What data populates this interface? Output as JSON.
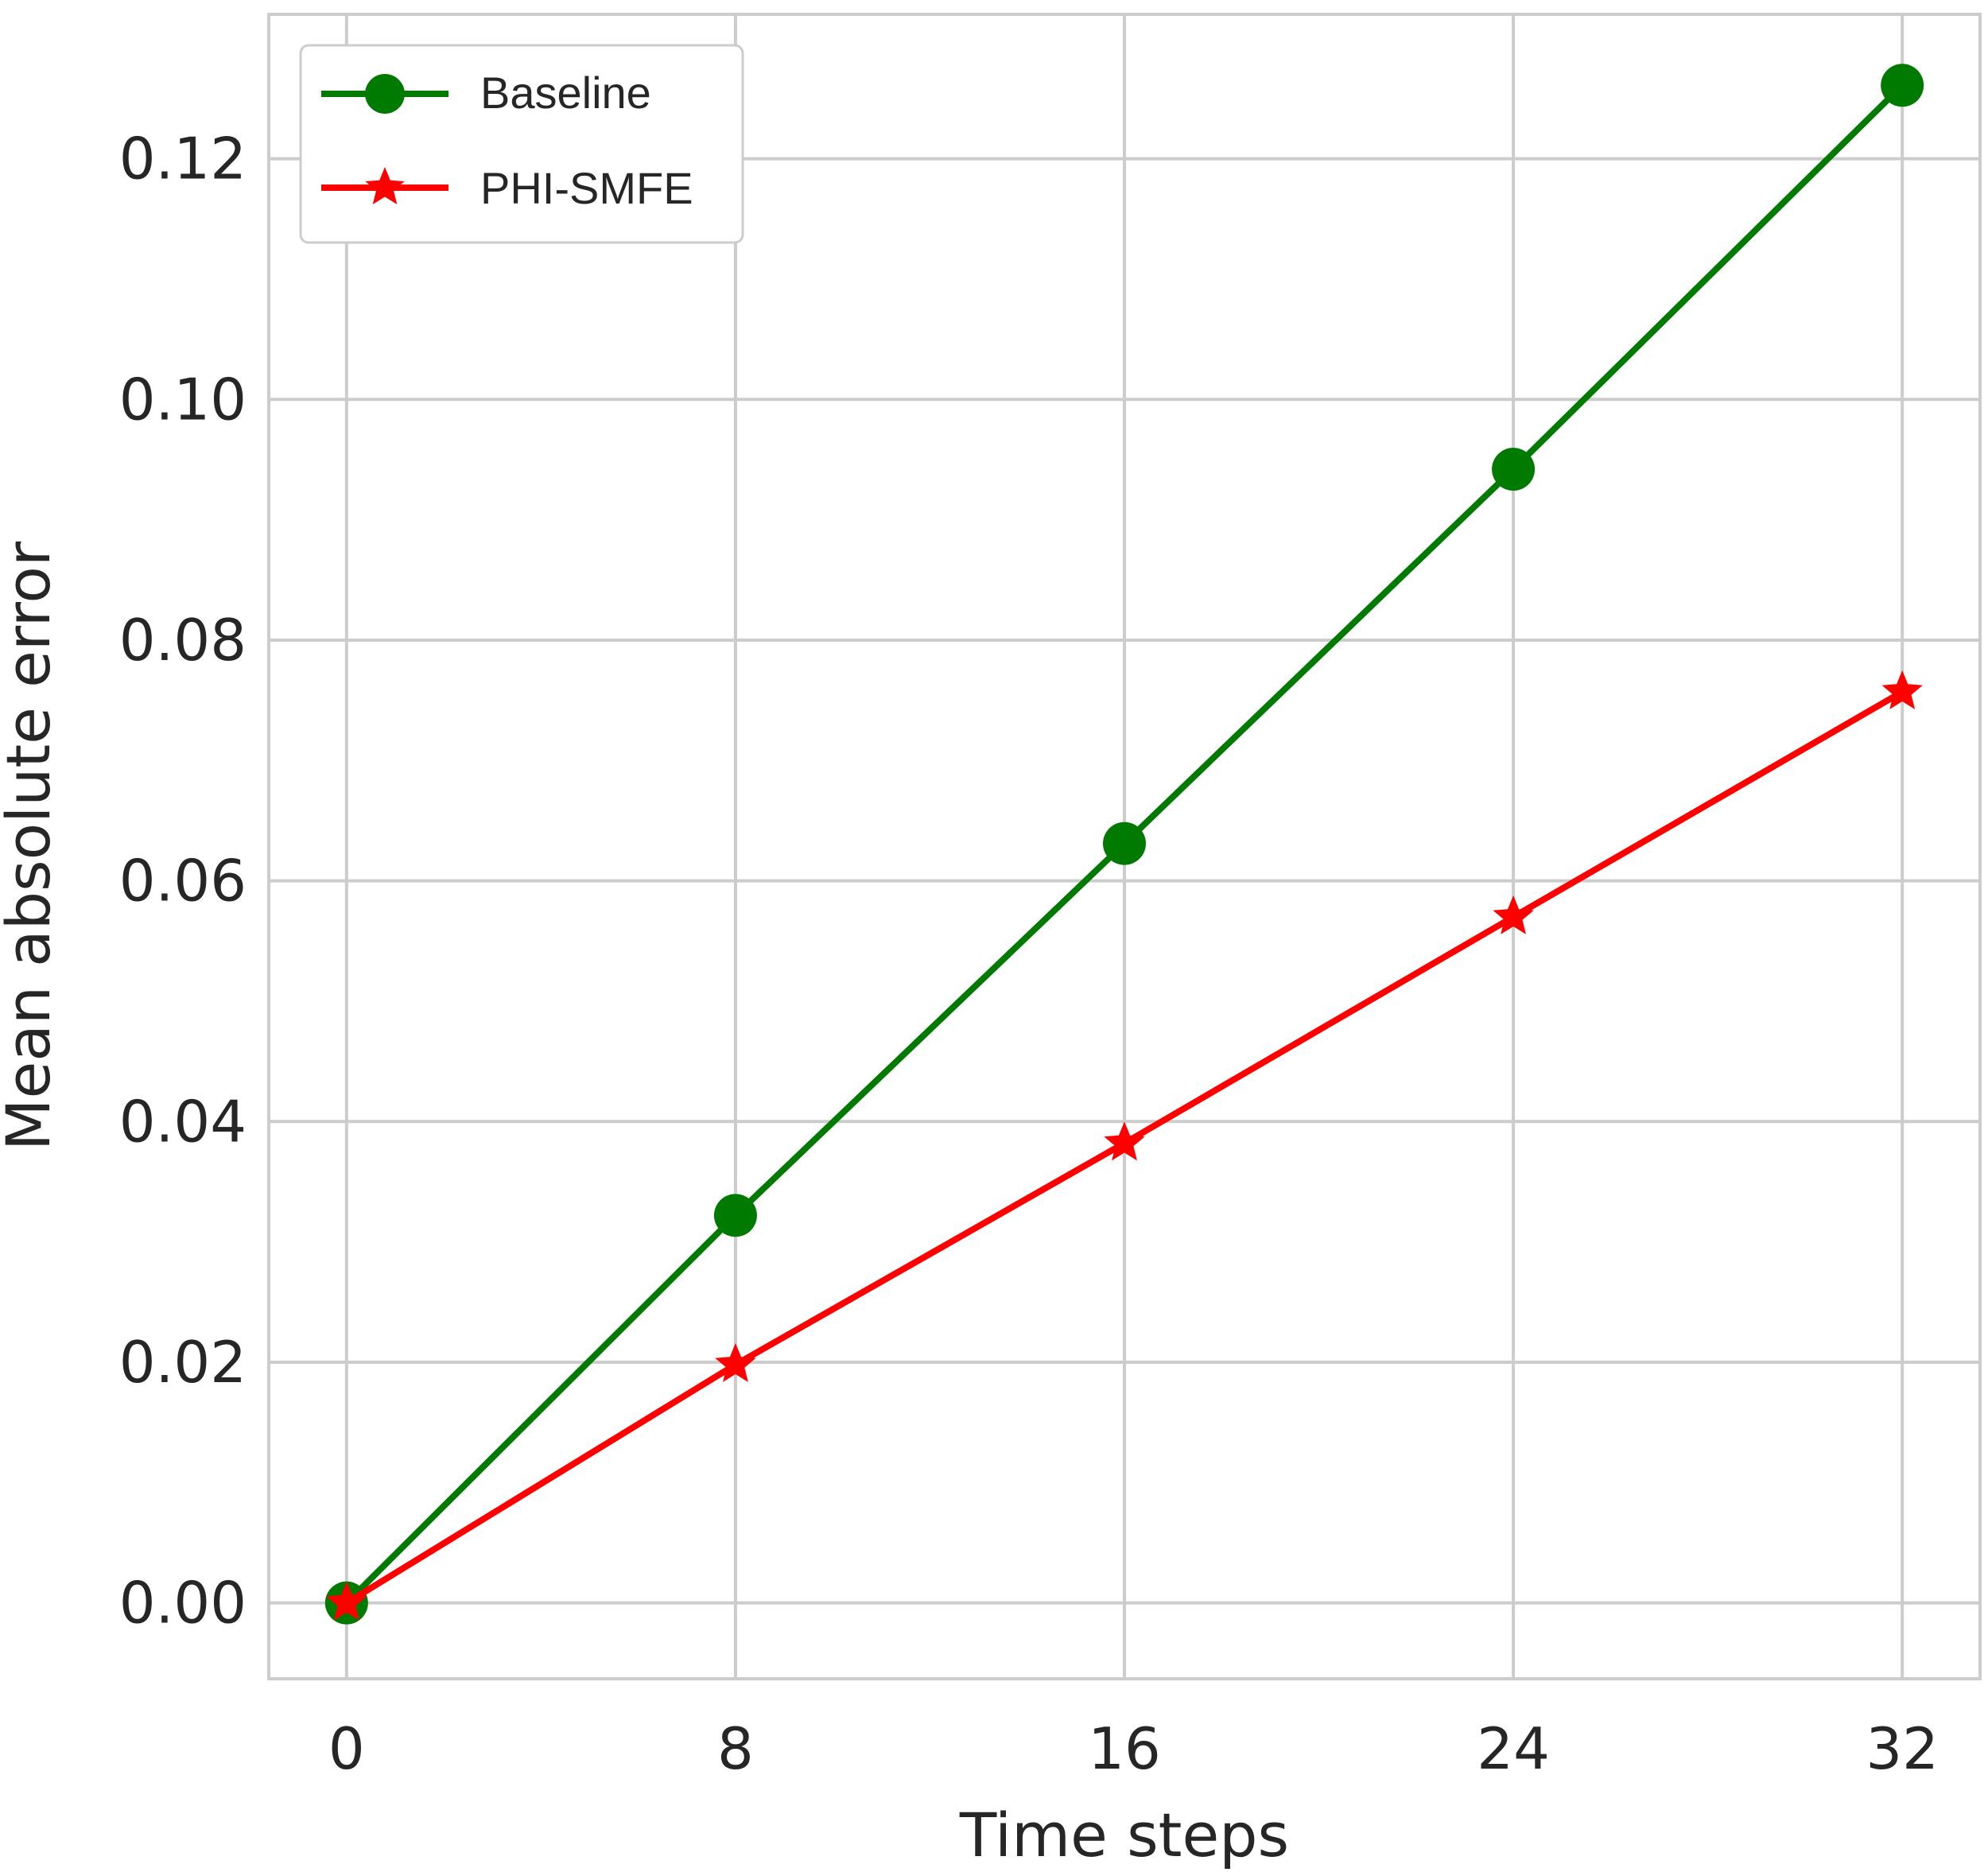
{
  "chart_data": {
    "type": "line",
    "title": "",
    "xlabel": "Time steps",
    "ylabel": "Mean absolute error",
    "x": [
      0,
      8,
      16,
      24,
      32
    ],
    "xticks": [
      "0",
      "8",
      "16",
      "24",
      "32"
    ],
    "yticks": [
      "0.00",
      "0.02",
      "0.04",
      "0.06",
      "0.08",
      "0.10",
      "0.12"
    ],
    "xlim": [
      -1.6,
      33.6
    ],
    "ylim": [
      -0.0063,
      0.132
    ],
    "grid": true,
    "legend_position": "top-left",
    "series": [
      {
        "name": "Baseline",
        "values": [
          0.0,
          0.0322,
          0.0631,
          0.0942,
          0.1261
        ],
        "color": "#007a00",
        "marker": "circle"
      },
      {
        "name": "PHI-SMFE",
        "values": [
          0.0,
          0.0198,
          0.0382,
          0.057,
          0.0757
        ],
        "color": "#ff0000",
        "marker": "star"
      }
    ]
  }
}
